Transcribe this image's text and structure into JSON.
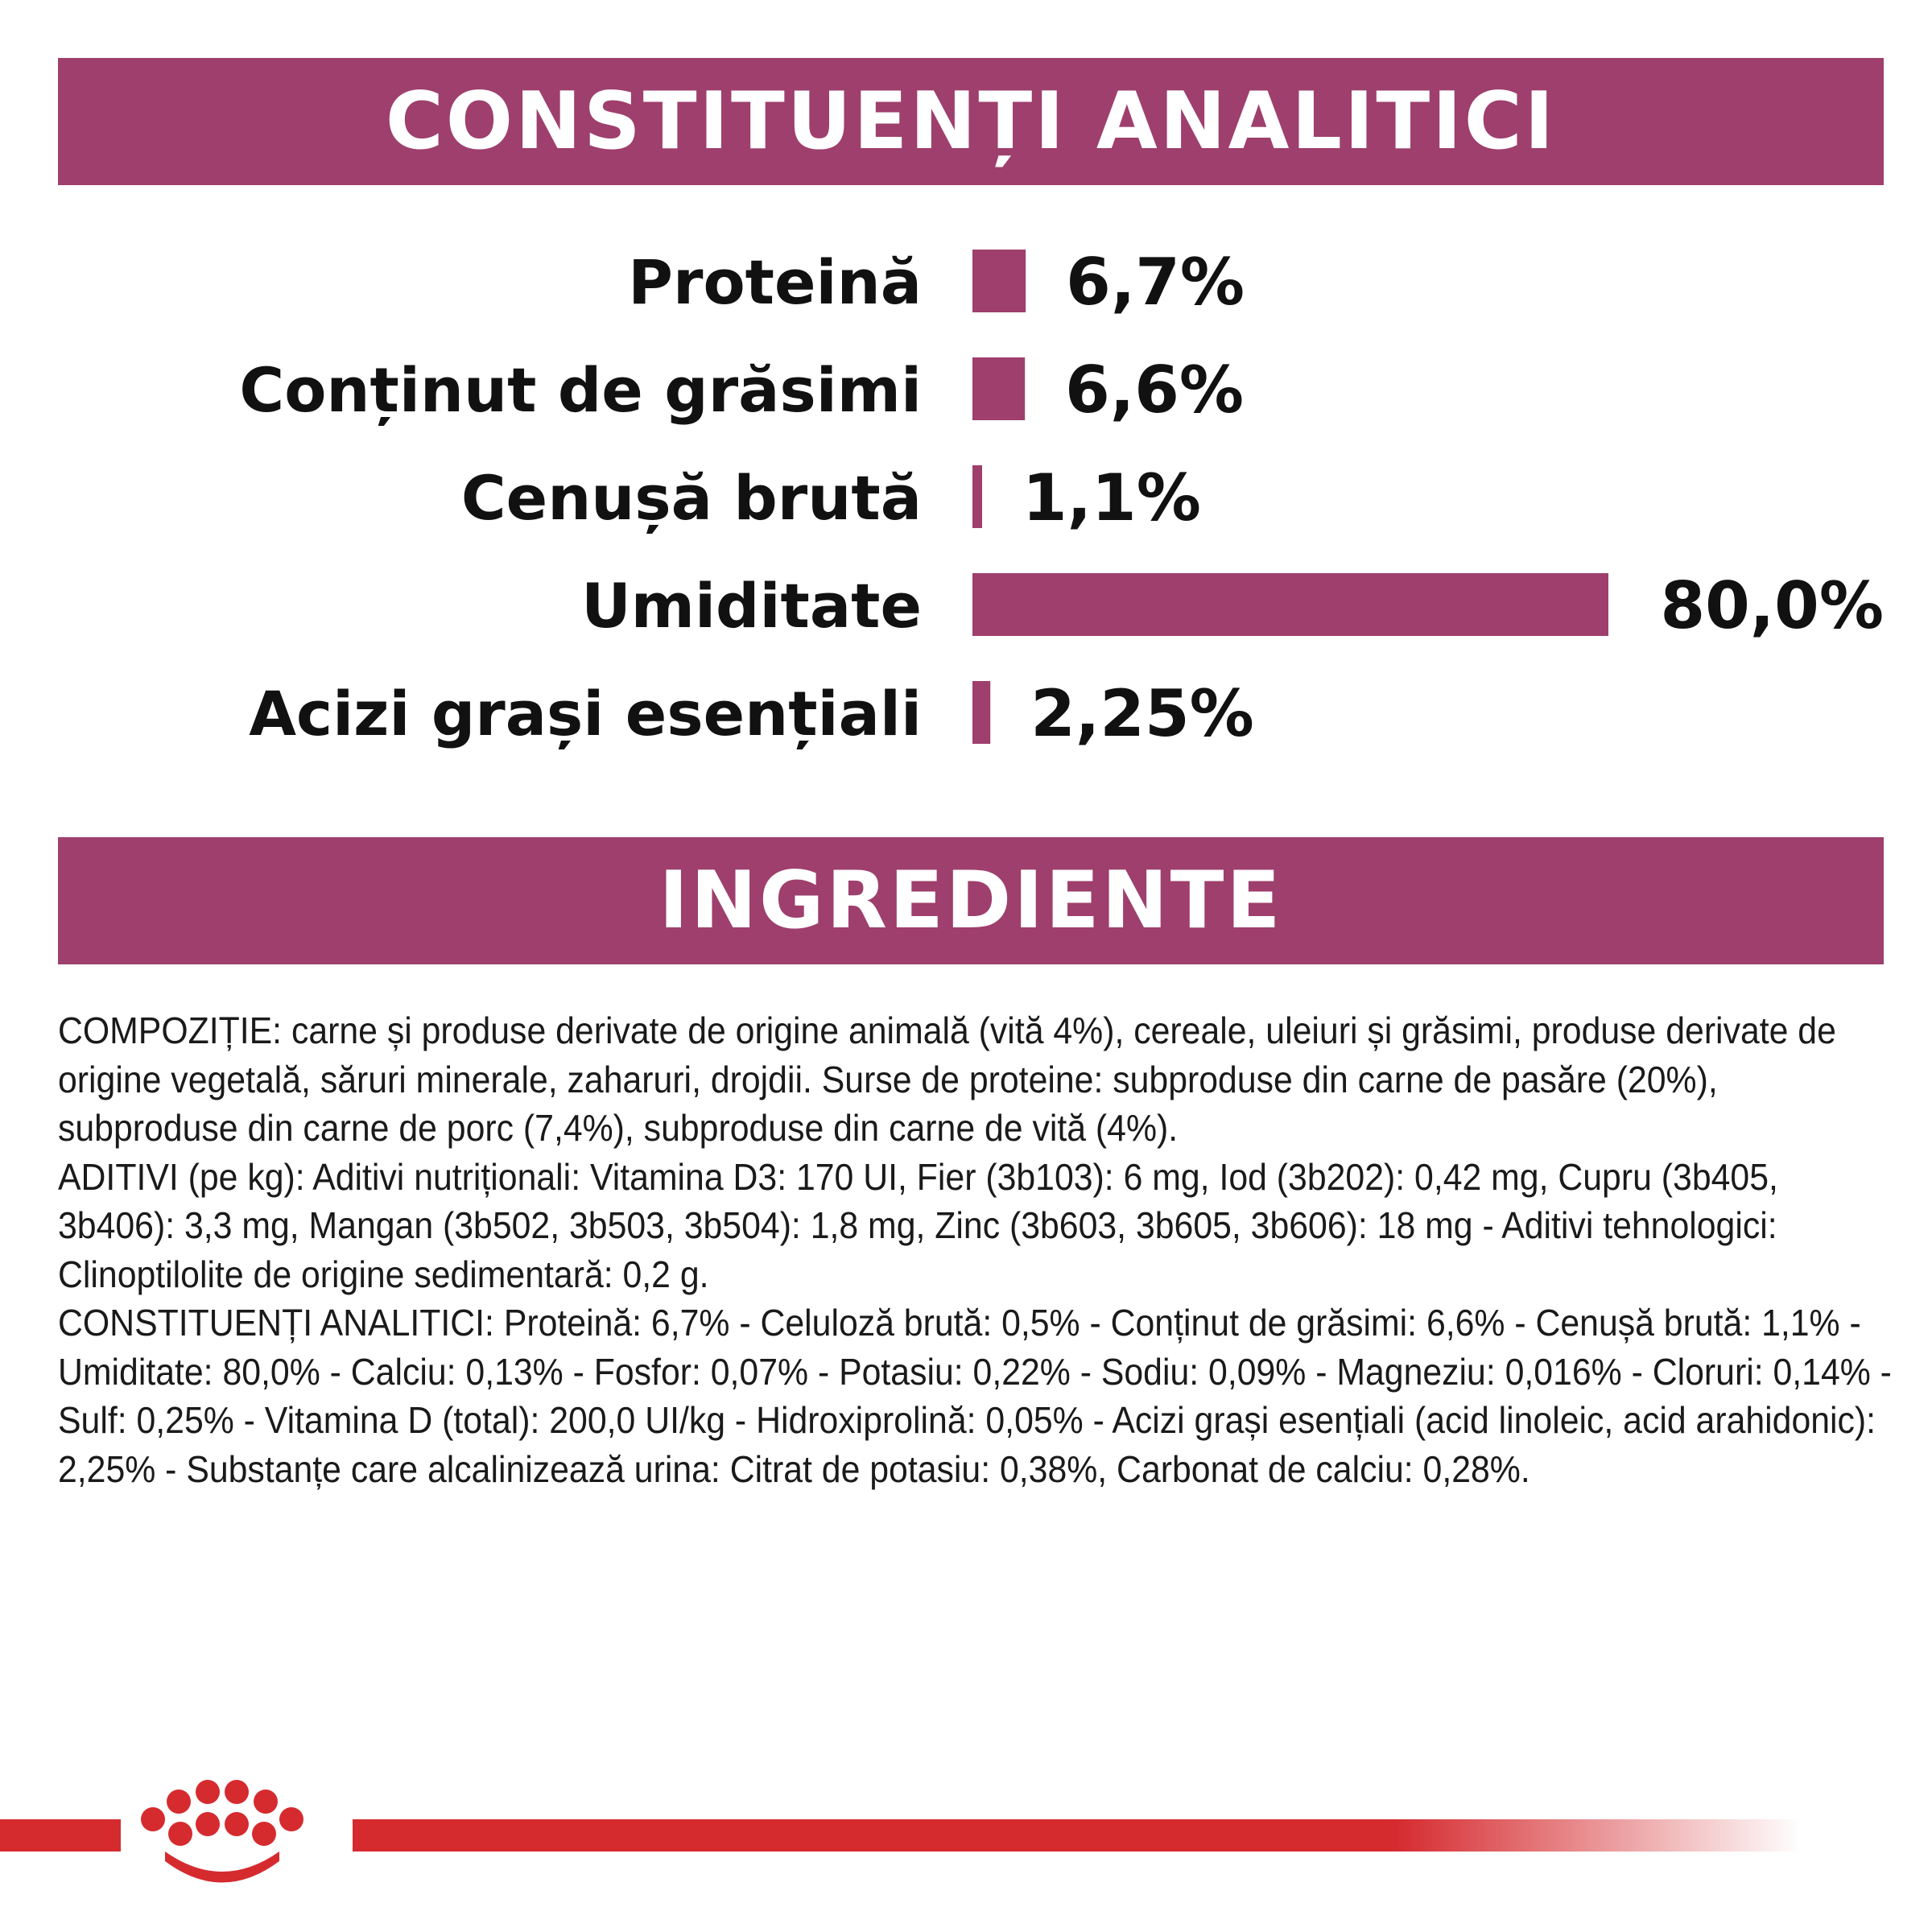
{
  "headers": {
    "analytic": "CONSTITUENȚI ANALITICI",
    "ingredients": "INGREDIENTE"
  },
  "colors": {
    "accent": "#9e3f6d",
    "brand_red": "#d52b2f"
  },
  "chart_data": {
    "type": "bar",
    "orientation": "horizontal",
    "title": "CONSTITUENȚI ANALITICI",
    "categories": [
      "Proteină",
      "Conținut de grăsimi",
      "Cenușă brută",
      "Umiditate",
      "Acizi grași esențiali"
    ],
    "values": [
      6.7,
      6.6,
      1.1,
      80.0,
      2.25
    ],
    "value_labels": [
      "6,7%",
      "6,6%",
      "1,1%",
      "80,0%",
      "2,25%"
    ],
    "unit": "%",
    "xlim": [
      0,
      80
    ]
  },
  "ingredients_text": [
    "COMPOZIȚIE: carne și produse derivate de origine animală (vită 4%), cereale, uleiuri și grăsimi, produse derivate de origine vegetală, săruri minerale, zaharuri, drojdii. Surse de proteine: subproduse din carne de pasăre (20%), subproduse din carne de porc (7,4%), subproduse din carne de vită (4%).",
    "ADITIVI (pe kg): Aditivi nutriționali: Vitamina D3: 170 UI, Fier (3b103): 6 mg, Iod (3b202): 0,42 mg, Cupru (3b405, 3b406): 3,3 mg, Mangan (3b502, 3b503, 3b504): 1,8 mg, Zinc (3b603, 3b605, 3b606): 18 mg - Aditivi tehnologici: Clinoptilolite de origine sedimentară: 0,2 g.",
    "CONSTITUENȚI ANALITICI: Proteină: 6,7% - Celuloză brută: 0,5% - Conținut de grăsimi: 6,6% - Cenușă brută: 1,1% - Umiditate: 80,0% - Calciu: 0,13% - Fosfor: 0,07% - Potasiu: 0,22% - Sodiu: 0,09% - Magneziu: 0,016% - Cloruri: 0,14% - Sulf: 0,25% - Vitamina D (total): 200,0 UI/kg - Hidroxiprolină: 0,05% - Acizi grași esențiali (acid linoleic, acid arahidonic): 2,25% - Substanțe care alcalinizează urina: Citrat de potasiu: 0,38%, Carbonat de calciu: 0,28%."
  ]
}
